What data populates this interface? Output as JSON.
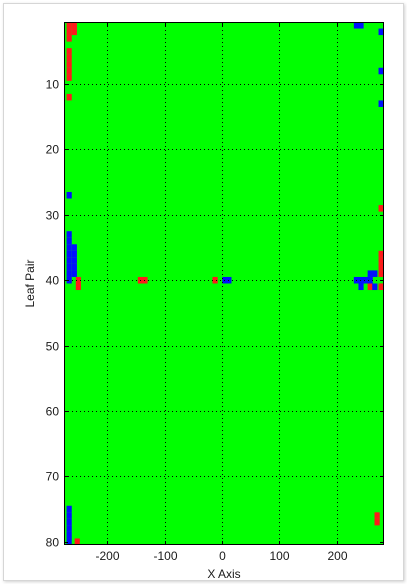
{
  "chart_data": {
    "type": "heatmap",
    "title": "",
    "xlabel": "X Axis",
    "ylabel": "Leaf Pair",
    "xlim": [
      -275,
      282
    ],
    "ylim": [
      1,
      80
    ],
    "y_reversed": true,
    "grid": true,
    "grid_style": "dotted",
    "x_ticks": [
      -200,
      -100,
      0,
      100,
      200
    ],
    "y_ticks": [
      10,
      20,
      30,
      40,
      50,
      60,
      70,
      80
    ],
    "background_value_color": "#00ff00",
    "colors": {
      "green": "#00ff00",
      "red": "#ff1a1a",
      "blue": "#0010ff"
    },
    "cell_width": 9,
    "cells": [
      {
        "x": -266,
        "y": 1,
        "color": "red"
      },
      {
        "x": -257,
        "y": 1,
        "color": "red"
      },
      {
        "x": -266,
        "y": 2,
        "color": "red"
      },
      {
        "x": -257,
        "y": 2,
        "color": "red"
      },
      {
        "x": -266,
        "y": 3,
        "color": "red"
      },
      {
        "x": -266,
        "y": 5,
        "color": "red"
      },
      {
        "x": -266,
        "y": 6,
        "color": "red"
      },
      {
        "x": -266,
        "y": 7,
        "color": "red"
      },
      {
        "x": -266,
        "y": 8,
        "color": "red"
      },
      {
        "x": -266,
        "y": 9,
        "color": "red"
      },
      {
        "x": -266,
        "y": 12,
        "color": "red"
      },
      {
        "x": -266,
        "y": 27,
        "color": "blue"
      },
      {
        "x": -266,
        "y": 33,
        "color": "blue"
      },
      {
        "x": -266,
        "y": 34,
        "color": "blue"
      },
      {
        "x": -266,
        "y": 35,
        "color": "blue"
      },
      {
        "x": -257,
        "y": 35,
        "color": "blue"
      },
      {
        "x": -266,
        "y": 36,
        "color": "blue"
      },
      {
        "x": -257,
        "y": 36,
        "color": "blue"
      },
      {
        "x": -266,
        "y": 37,
        "color": "blue"
      },
      {
        "x": -257,
        "y": 37,
        "color": "blue"
      },
      {
        "x": -266,
        "y": 38,
        "color": "blue"
      },
      {
        "x": -257,
        "y": 38,
        "color": "blue"
      },
      {
        "x": -266,
        "y": 39,
        "color": "blue"
      },
      {
        "x": -257,
        "y": 39,
        "color": "blue"
      },
      {
        "x": -266,
        "y": 40,
        "color": "blue"
      },
      {
        "x": -250,
        "y": 40,
        "color": "red"
      },
      {
        "x": -250,
        "y": 41,
        "color": "red"
      },
      {
        "x": -142,
        "y": 40,
        "color": "red"
      },
      {
        "x": -134,
        "y": 40,
        "color": "red"
      },
      {
        "x": -12,
        "y": 40,
        "color": "red"
      },
      {
        "x": 5,
        "y": 40,
        "color": "blue"
      },
      {
        "x": 12,
        "y": 40,
        "color": "blue"
      },
      {
        "x": 234,
        "y": 1,
        "color": "blue"
      },
      {
        "x": 242,
        "y": 1,
        "color": "blue"
      },
      {
        "x": 277,
        "y": 2,
        "color": "blue"
      },
      {
        "x": 277,
        "y": 8,
        "color": "blue"
      },
      {
        "x": 277,
        "y": 13,
        "color": "blue"
      },
      {
        "x": 277,
        "y": 29,
        "color": "red"
      },
      {
        "x": 277,
        "y": 36,
        "color": "red"
      },
      {
        "x": 277,
        "y": 37,
        "color": "red"
      },
      {
        "x": 277,
        "y": 38,
        "color": "red"
      },
      {
        "x": 277,
        "y": 39,
        "color": "red"
      },
      {
        "x": 266,
        "y": 39,
        "color": "blue"
      },
      {
        "x": 258,
        "y": 39,
        "color": "blue"
      },
      {
        "x": 258,
        "y": 40,
        "color": "blue"
      },
      {
        "x": 250,
        "y": 40,
        "color": "blue"
      },
      {
        "x": 234,
        "y": 40,
        "color": "blue"
      },
      {
        "x": 242,
        "y": 40,
        "color": "blue"
      },
      {
        "x": 242,
        "y": 41,
        "color": "blue"
      },
      {
        "x": 258,
        "y": 41,
        "color": "red"
      },
      {
        "x": 266,
        "y": 41,
        "color": "blue"
      },
      {
        "x": 277,
        "y": 41,
        "color": "red"
      },
      {
        "x": 270,
        "y": 76,
        "color": "red"
      },
      {
        "x": 270,
        "y": 77,
        "color": "red"
      },
      {
        "x": -266,
        "y": 75,
        "color": "blue"
      },
      {
        "x": -266,
        "y": 76,
        "color": "blue"
      },
      {
        "x": -266,
        "y": 77,
        "color": "blue"
      },
      {
        "x": -266,
        "y": 78,
        "color": "blue"
      },
      {
        "x": -266,
        "y": 79,
        "color": "blue"
      },
      {
        "x": -266,
        "y": 80,
        "color": "blue"
      },
      {
        "x": -252,
        "y": 80,
        "color": "red"
      }
    ]
  }
}
